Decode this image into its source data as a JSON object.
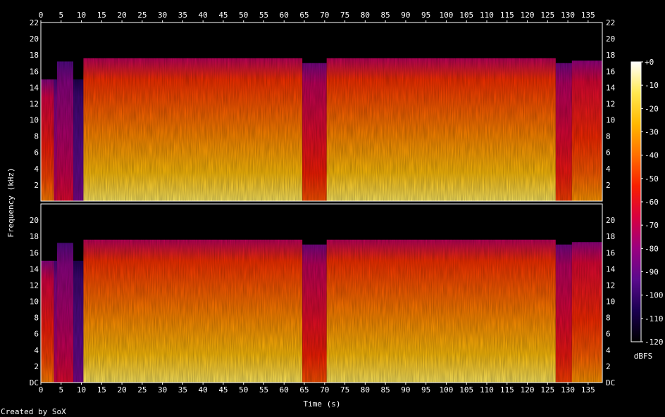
{
  "chart_data": {
    "type": "heatmap",
    "title": "",
    "xlabel": "Time (s)",
    "ylabel": "Frequency (kHz)",
    "credit": "Created by SoX",
    "x_unit": "s",
    "y_unit": "kHz",
    "xlim": [
      0,
      138.5
    ],
    "ylim": [
      0,
      22
    ],
    "x_ticks": [
      0,
      5,
      10,
      15,
      20,
      25,
      30,
      35,
      40,
      45,
      50,
      55,
      60,
      65,
      70,
      75,
      80,
      85,
      90,
      95,
      100,
      105,
      110,
      115,
      120,
      125,
      130,
      135
    ],
    "x_tick_labels": [
      "0",
      "5",
      "10",
      "15",
      "20",
      "25",
      "30",
      "35",
      "40",
      "45",
      "50",
      "55",
      "60",
      "65",
      "70",
      "75",
      "80",
      "85",
      "90",
      "95",
      "100",
      "105",
      "110",
      "115",
      "120",
      "125",
      "130",
      "135"
    ],
    "channels": [
      {
        "tick_values": [
          2,
          4,
          6,
          8,
          10,
          12,
          14,
          16,
          18,
          20,
          22
        ],
        "tick_labels": [
          "2",
          "4",
          "6",
          "8",
          "10",
          "12",
          "14",
          "16",
          "18",
          "20",
          "22"
        ]
      },
      {
        "tick_values": [
          0,
          2,
          4,
          6,
          8,
          10,
          12,
          14,
          16,
          18,
          20
        ],
        "tick_labels": [
          "DC",
          "2",
          "4",
          "6",
          "8",
          "10",
          "12",
          "14",
          "16",
          "18",
          "20"
        ]
      }
    ],
    "colorbar": {
      "unit": "dBFS",
      "range": [
        -120,
        0
      ],
      "tick_values": [
        0,
        -10,
        -20,
        -30,
        -40,
        -50,
        -60,
        -70,
        -80,
        -90,
        -100,
        -110,
        -120
      ],
      "tick_labels": [
        "+0",
        "-10",
        "-20",
        "-30",
        "-40",
        "-50",
        "-60",
        "-70",
        "-80",
        "-90",
        "-100",
        "-110",
        "-120"
      ],
      "colors": [
        "#000000",
        "#1a0050",
        "#5a0a8c",
        "#9a0080",
        "#d80040",
        "#f82000",
        "#ff7000",
        "#ffb800",
        "#ffe850",
        "#ffffff"
      ]
    },
    "segments": [
      {
        "t0": 0,
        "t1": 3.2,
        "top_khz": 15.0,
        "level": 0.55
      },
      {
        "t0": 3.2,
        "t1": 4.0,
        "top_khz": 15.0,
        "level": 0.35
      },
      {
        "t0": 4.0,
        "t1": 8.0,
        "top_khz": 17.2,
        "level": 0.38
      },
      {
        "t0": 8.0,
        "t1": 10.5,
        "top_khz": 15.0,
        "level": 0.22
      },
      {
        "t0": 10.5,
        "t1": 64.5,
        "top_khz": 17.6,
        "level": 0.72
      },
      {
        "t0": 64.5,
        "t1": 70.5,
        "top_khz": 17.0,
        "level": 0.5
      },
      {
        "t0": 70.5,
        "t1": 127.0,
        "top_khz": 17.6,
        "level": 0.72
      },
      {
        "t0": 127.0,
        "t1": 131.0,
        "top_khz": 17.0,
        "level": 0.48
      },
      {
        "t0": 131.0,
        "t1": 138.5,
        "top_khz": 17.3,
        "level": 0.58
      }
    ]
  }
}
